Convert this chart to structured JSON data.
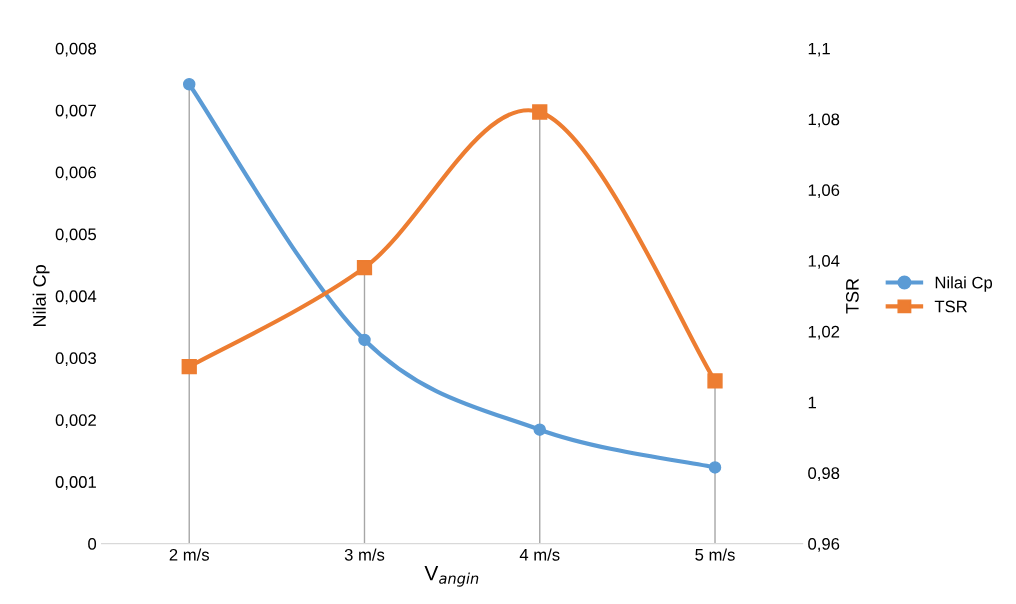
{
  "chart_data": {
    "type": "line",
    "xlabel": "V$_{angin}$",
    "ylabel": "Nilai Cp",
    "y2label": "TSR",
    "categories": [
      "2 m/s",
      "3 m/s",
      "4 m/s",
      "5 m/s"
    ],
    "series": [
      {
        "name": "Nilai Cp",
        "color": "#5b9bd5",
        "marker": "circle",
        "values": [
          0.00742,
          0.00329,
          0.00184,
          0.00123
        ]
      },
      {
        "name": "TSR",
        "color": "#ed7d31",
        "marker": "square",
        "axis": "y2",
        "values": [
          1.01,
          1.038,
          1.082,
          1.006
        ]
      }
    ],
    "ylim": [
      0,
      0.008
    ],
    "yticks": [
      0,
      {
        "value": 0.001,
        "label": "0,001"
      },
      {
        "value": 0.002,
        "label": "0,002"
      },
      {
        "value": 0.003,
        "label": "0,003"
      },
      {
        "value": 0.004,
        "label": "0,004"
      },
      {
        "value": 0.005,
        "label": "0,005"
      },
      {
        "value": 0.006,
        "label": "0,006"
      },
      {
        "value": 0.007,
        "label": "0,007"
      },
      {
        "value": 0.008,
        "label": "0,008"
      }
    ],
    "y2lim": [
      0.96,
      1.1
    ],
    "y2ticks": [
      {
        "value": 0.96,
        "label": "0,96"
      },
      {
        "value": 0.98,
        "label": "0,98"
      },
      1,
      {
        "value": 1.02,
        "label": "1,02"
      },
      {
        "value": 1.04,
        "label": "1,04"
      },
      {
        "value": 1.06,
        "label": "1,06"
      },
      {
        "value": 1.08,
        "label": "1,08"
      },
      {
        "value": 1.1,
        "label": "1,1"
      }
    ],
    "ref_lines": [
      {
        "axis": "x",
        "value": "2 m/s",
        "color": "#a6a6a6"
      },
      {
        "axis": "x",
        "value": "3 m/s",
        "color": "#a6a6a6"
      },
      {
        "axis": "x",
        "value": "4 m/s",
        "color": "#a6a6a6"
      },
      {
        "axis": "x",
        "value": "5 m/s",
        "color": "#a6a6a6"
      }
    ],
    "grid": false,
    "legend": "right"
  }
}
